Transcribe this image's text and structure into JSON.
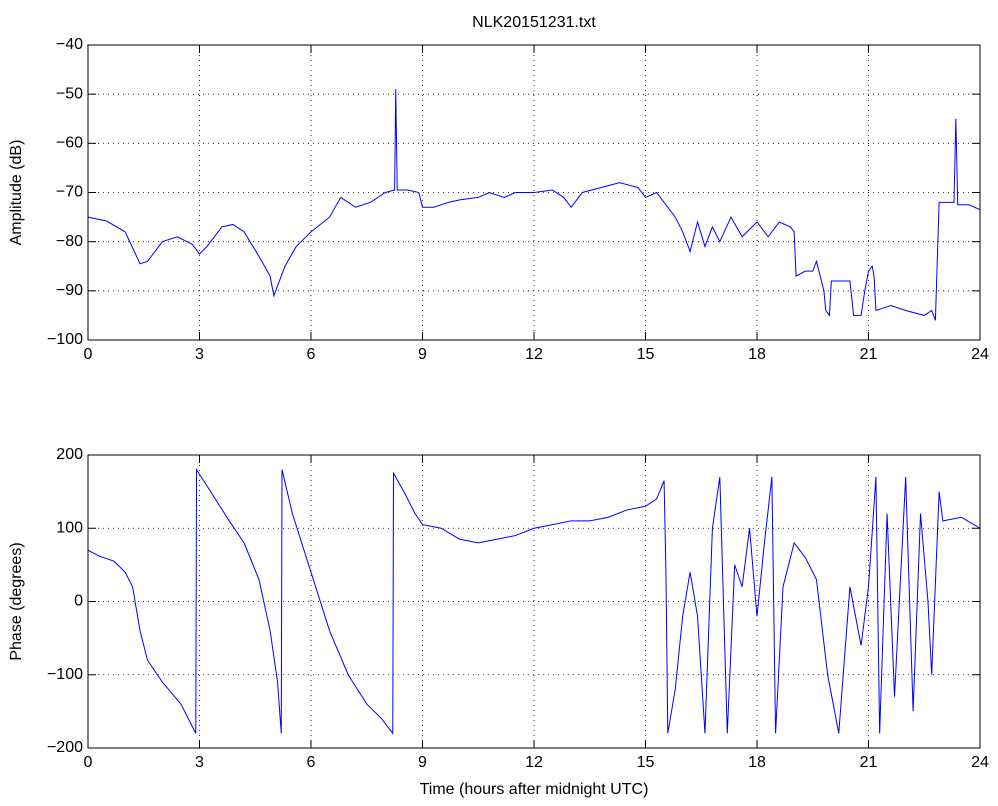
{
  "chart_data": [
    {
      "type": "line",
      "title": "NLK20151231.txt",
      "ylabel": "Amplitude (dB)",
      "grid": true,
      "xlim": [
        0,
        24
      ],
      "xticks": [
        0,
        3,
        6,
        9,
        12,
        15,
        18,
        21,
        24
      ],
      "ylim": [
        -100,
        -40
      ],
      "yticks": [
        {
          "value": -100,
          "label": "−100"
        },
        {
          "value": -90,
          "label": "−90"
        },
        {
          "value": -80,
          "label": "−80"
        },
        {
          "value": -70,
          "label": "−70"
        },
        {
          "value": -60,
          "label": "−60"
        },
        {
          "value": -50,
          "label": "−50"
        },
        {
          "value": -40,
          "label": "−40"
        }
      ],
      "color": "#0000ff",
      "x": [
        0,
        0.5,
        1.0,
        1.4,
        1.6,
        2.0,
        2.4,
        2.8,
        3.0,
        3.2,
        3.6,
        3.9,
        4.2,
        4.6,
        4.9,
        5.0,
        5.1,
        5.3,
        5.6,
        6.0,
        6.5,
        6.8,
        7.0,
        7.2,
        7.6,
        8.0,
        8.25,
        8.28,
        8.32,
        8.6,
        8.9,
        9.0,
        9.3,
        9.7,
        10.0,
        10.5,
        10.8,
        11.2,
        11.5,
        12.0,
        12.5,
        12.8,
        13.0,
        13.3,
        13.8,
        14.3,
        14.8,
        15.0,
        15.3,
        15.5,
        15.8,
        16.0,
        16.2,
        16.4,
        16.6,
        16.8,
        17.0,
        17.3,
        17.6,
        18.0,
        18.3,
        18.6,
        18.9,
        19.0,
        19.05,
        19.3,
        19.5,
        19.6,
        19.8,
        19.85,
        19.95,
        20.0,
        20.3,
        20.5,
        20.6,
        20.8,
        20.9,
        21.0,
        21.1,
        21.15,
        21.2,
        21.6,
        22.0,
        22.5,
        22.7,
        22.8,
        22.9,
        23.3,
        23.35,
        23.4,
        23.7,
        24
      ],
      "values": [
        -75,
        -75.8,
        -78,
        -84.5,
        -84,
        -80,
        -79,
        -80.5,
        -82.5,
        -81,
        -77,
        -76.5,
        -78,
        -83,
        -87,
        -91,
        -89,
        -85,
        -81,
        -78,
        -75,
        -71,
        -72,
        -73,
        -72,
        -70,
        -69.5,
        -49,
        -69.5,
        -69.5,
        -70,
        -73,
        -73,
        -72,
        -71.5,
        -71,
        -70,
        -71,
        -70,
        -70,
        -69.5,
        -71,
        -73,
        -70,
        -69,
        -68,
        -69,
        -71,
        -70,
        -72,
        -75,
        -78,
        -82,
        -76,
        -81,
        -77,
        -80,
        -75,
        -79,
        -76,
        -79,
        -76,
        -77,
        -78,
        -87,
        -86,
        -86,
        -84,
        -90,
        -94,
        -95,
        -88,
        -88,
        -88,
        -95,
        -95,
        -90,
        -86,
        -85,
        -87,
        -94,
        -93,
        -94,
        -95,
        -94,
        -96,
        -72,
        -72,
        -55,
        -72.5,
        -72.5,
        -73.5
      ]
    },
    {
      "type": "line",
      "xlabel": "Time (hours after midnight UTC)",
      "ylabel": "Phase (degrees)",
      "grid": true,
      "xlim": [
        0,
        24
      ],
      "xticks": [
        0,
        3,
        6,
        9,
        12,
        15,
        18,
        21,
        24
      ],
      "ylim": [
        -200,
        200
      ],
      "yticks": [
        {
          "value": -200,
          "label": "−200"
        },
        {
          "value": -100,
          "label": "−100"
        },
        0,
        100,
        200
      ],
      "color": "#0000ff",
      "x": [
        0,
        0.3,
        0.7,
        1.0,
        1.2,
        1.4,
        1.6,
        2.0,
        2.5,
        2.9,
        2.92,
        3.3,
        3.8,
        4.2,
        4.6,
        4.9,
        5.1,
        5.2,
        5.22,
        5.5,
        6.0,
        6.5,
        7.0,
        7.5,
        7.9,
        8.2,
        8.22,
        8.5,
        8.8,
        9.0,
        9.5,
        10.0,
        10.5,
        11.0,
        11.5,
        12.0,
        12.5,
        13.0,
        13.5,
        14.0,
        14.5,
        15.0,
        15.3,
        15.5,
        15.55,
        15.6,
        15.8,
        16.0,
        16.2,
        16.4,
        16.6,
        16.8,
        17.0,
        17.2,
        17.4,
        17.6,
        17.8,
        18.0,
        18.2,
        18.4,
        18.5,
        18.7,
        19.0,
        19.3,
        19.6,
        19.9,
        20.2,
        20.5,
        20.8,
        21.0,
        21.2,
        21.3,
        21.5,
        21.7,
        22.0,
        22.2,
        22.4,
        22.6,
        22.7,
        22.9,
        23.0,
        23.5,
        24
      ],
      "values": [
        70,
        62,
        55,
        40,
        20,
        -40,
        -80,
        -110,
        -140,
        -180,
        180,
        150,
        110,
        80,
        30,
        -40,
        -110,
        -180,
        180,
        120,
        40,
        -40,
        -100,
        -140,
        -160,
        -180,
        175,
        150,
        120,
        105,
        100,
        85,
        80,
        85,
        90,
        100,
        105,
        110,
        110,
        115,
        125,
        130,
        140,
        165,
        40,
        -180,
        -120,
        -20,
        40,
        -20,
        -180,
        100,
        170,
        -180,
        50,
        20,
        100,
        -20,
        80,
        170,
        -180,
        20,
        80,
        60,
        30,
        -100,
        -180,
        20,
        -60,
        20,
        170,
        -180,
        120,
        -130,
        170,
        -150,
        120,
        0,
        -100,
        150,
        110,
        115,
        100
      ]
    }
  ]
}
